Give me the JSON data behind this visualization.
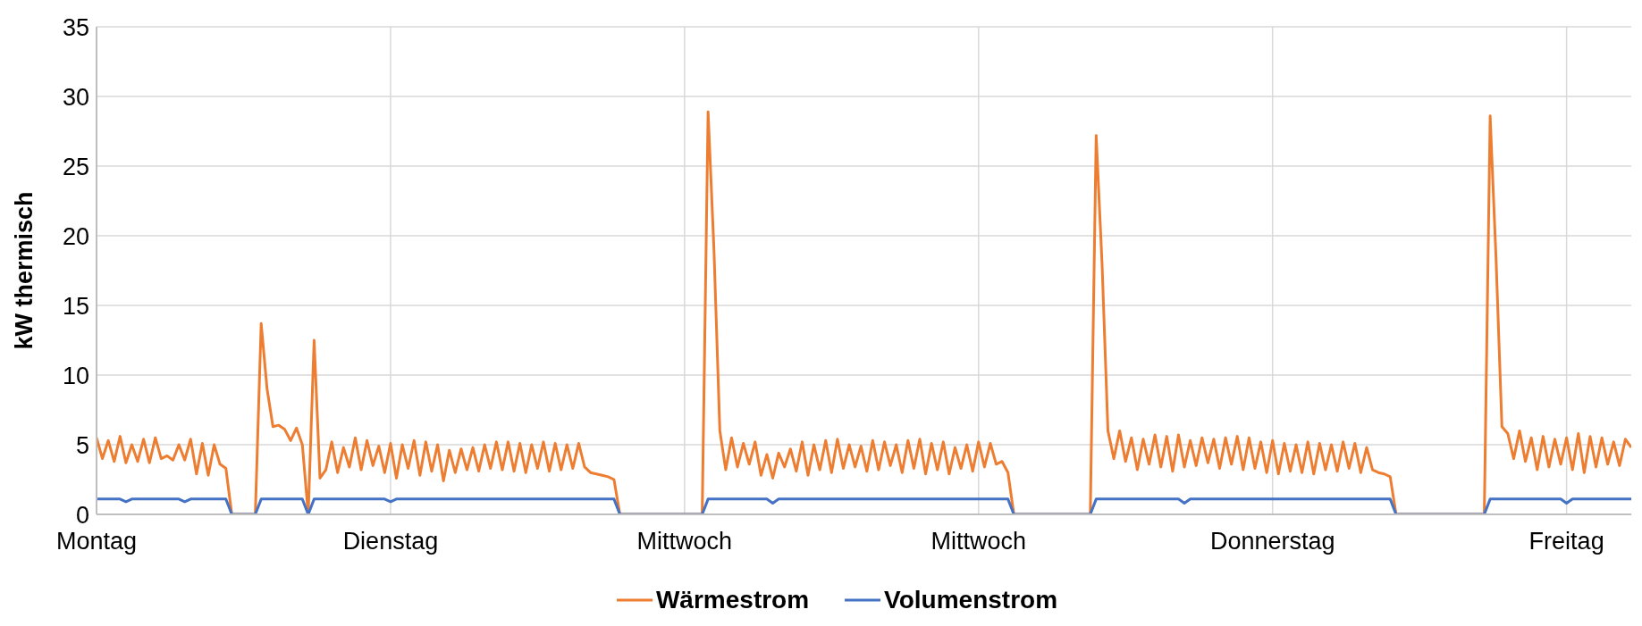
{
  "chart_data": {
    "type": "line",
    "ylabel": "kW thermisch",
    "ylim": [
      0,
      35
    ],
    "yticks": [
      0,
      5,
      10,
      15,
      20,
      25,
      30,
      35
    ],
    "grid": true,
    "legend": "bottom",
    "categories": [
      "Montag",
      null,
      null,
      null,
      null,
      null,
      null,
      null,
      null,
      null,
      null,
      null,
      null,
      null,
      null,
      null,
      null,
      null,
      null,
      null,
      null,
      null,
      null,
      null,
      null,
      null,
      null,
      null,
      null,
      null,
      null,
      null,
      null,
      null,
      null,
      null,
      null,
      null,
      null,
      null,
      null,
      null,
      null,
      null,
      null,
      null,
      null,
      null,
      null,
      null,
      "Dienstag",
      null,
      null,
      null,
      null,
      null,
      null,
      null,
      null,
      null,
      null,
      null,
      null,
      null,
      null,
      null,
      null,
      null,
      null,
      null,
      null,
      null,
      null,
      null,
      null,
      null,
      null,
      null,
      null,
      null,
      null,
      null,
      null,
      null,
      null,
      null,
      null,
      null,
      null,
      null,
      null,
      null,
      null,
      null,
      null,
      null,
      null,
      null,
      null,
      null,
      "Mittwoch",
      null,
      null,
      null,
      null,
      null,
      null,
      null,
      null,
      null,
      null,
      null,
      null,
      null,
      null,
      null,
      null,
      null,
      null,
      null,
      null,
      null,
      null,
      null,
      null,
      null,
      null,
      null,
      null,
      null,
      null,
      null,
      null,
      null,
      null,
      null,
      null,
      null,
      null,
      null,
      null,
      null,
      null,
      null,
      null,
      null,
      null,
      null,
      null,
      null,
      "Mittwoch",
      null,
      null,
      null,
      null,
      null,
      null,
      null,
      null,
      null,
      null,
      null,
      null,
      null,
      null,
      null,
      null,
      null,
      null,
      null,
      null,
      null,
      null,
      null,
      null,
      null,
      null,
      null,
      null,
      null,
      null,
      null,
      null,
      null,
      null,
      null,
      null,
      null,
      null,
      null,
      null,
      null,
      null,
      null,
      null,
      null,
      null,
      null,
      null,
      null,
      "Donnerstag",
      null,
      null,
      null,
      null,
      null,
      null,
      null,
      null,
      null,
      null,
      null,
      null,
      null,
      null,
      null,
      null,
      null,
      null,
      null,
      null,
      null,
      null,
      null,
      null,
      null,
      null,
      null,
      null,
      null,
      null,
      null,
      null,
      null,
      null,
      null,
      null,
      null,
      null,
      null,
      null,
      null,
      null,
      null,
      null,
      null,
      null,
      null,
      null,
      null,
      "Freitag",
      null,
      null,
      null,
      null,
      null,
      null,
      null,
      null,
      null,
      null,
      null
    ],
    "series": [
      {
        "name": "Wärmestrom",
        "color": "#ed7d31",
        "values": [
          5.5,
          4.0,
          5.3,
          3.8,
          5.6,
          3.7,
          5.0,
          3.8,
          5.4,
          3.7,
          5.5,
          4.0,
          4.2,
          3.9,
          5.0,
          3.9,
          5.4,
          2.9,
          5.1,
          2.8,
          5.0,
          3.6,
          3.3,
          0,
          0,
          0,
          0,
          0,
          13.7,
          9.0,
          6.3,
          6.4,
          6.1,
          5.3,
          6.2,
          5.0,
          0,
          12.5,
          2.6,
          3.2,
          5.2,
          3.0,
          4.8,
          3.4,
          5.5,
          3.2,
          5.3,
          3.5,
          4.9,
          3.0,
          5.1,
          2.6,
          5.0,
          3.3,
          5.3,
          2.8,
          5.2,
          3.1,
          5.0,
          2.4,
          4.6,
          3.0,
          4.7,
          3.2,
          4.8,
          3.1,
          5.0,
          3.3,
          5.2,
          3.2,
          5.2,
          3.1,
          5.1,
          3.0,
          5.0,
          3.3,
          5.2,
          3.1,
          5.1,
          3.2,
          5.0,
          3.3,
          5.1,
          3.4,
          3.0,
          2.9,
          2.8,
          2.7,
          2.5,
          0,
          0,
          0,
          0,
          0,
          0,
          0,
          0,
          0,
          0,
          0,
          0,
          0,
          0,
          0,
          28.9,
          19.0,
          6.0,
          3.2,
          5.5,
          3.4,
          5.1,
          3.6,
          5.2,
          2.8,
          4.3,
          2.6,
          4.4,
          3.4,
          4.7,
          3.1,
          5.2,
          2.8,
          5.0,
          3.2,
          5.3,
          3.0,
          5.4,
          3.3,
          5.0,
          3.4,
          4.9,
          3.1,
          5.3,
          3.2,
          5.2,
          3.5,
          5.0,
          3.0,
          5.3,
          3.3,
          5.4,
          2.9,
          5.1,
          3.2,
          5.2,
          2.9,
          4.8,
          3.3,
          5.0,
          3.1,
          5.2,
          3.4,
          5.1,
          3.6,
          3.8,
          3.0,
          0,
          0,
          0,
          0,
          0,
          0,
          0,
          0,
          0,
          0,
          0,
          0,
          0,
          0,
          27.2,
          18.0,
          6.0,
          4.0,
          6.0,
          3.8,
          5.5,
          3.2,
          5.4,
          3.6,
          5.7,
          3.4,
          5.6,
          3.1,
          5.7,
          3.4,
          5.3,
          3.5,
          5.5,
          3.7,
          5.4,
          3.3,
          5.5,
          3.6,
          5.6,
          3.2,
          5.5,
          3.3,
          5.2,
          3.0,
          5.3,
          2.9,
          5.1,
          3.1,
          5.0,
          3.0,
          5.2,
          2.9,
          5.1,
          3.2,
          5.0,
          3.1,
          5.2,
          3.3,
          5.1,
          3.0,
          4.8,
          3.2,
          3.0,
          2.9,
          2.7,
          0,
          0,
          0,
          0,
          0,
          0,
          0,
          0,
          0,
          0,
          0,
          0,
          0,
          0,
          0,
          0,
          28.6,
          18.4,
          6.3,
          5.8,
          4.0,
          6.0,
          3.8,
          5.5,
          3.2,
          5.6,
          3.4,
          5.4,
          3.6,
          5.5,
          3.2,
          5.8,
          3.0,
          5.6,
          3.4,
          5.5,
          3.6,
          5.2,
          3.5,
          5.4,
          4.8
        ]
      },
      {
        "name": "Volumenstrom",
        "color": "#4472c4",
        "values": [
          1.1,
          1.1,
          1.1,
          1.1,
          1.1,
          0.9,
          1.1,
          1.1,
          1.1,
          1.1,
          1.1,
          1.1,
          1.1,
          1.1,
          1.1,
          0.9,
          1.1,
          1.1,
          1.1,
          1.1,
          1.1,
          1.1,
          1.1,
          0,
          0,
          0,
          0,
          0,
          1.1,
          1.1,
          1.1,
          1.1,
          1.1,
          1.1,
          1.1,
          1.1,
          0,
          1.1,
          1.1,
          1.1,
          1.1,
          1.1,
          1.1,
          1.1,
          1.1,
          1.1,
          1.1,
          1.1,
          1.1,
          1.1,
          0.9,
          1.1,
          1.1,
          1.1,
          1.1,
          1.1,
          1.1,
          1.1,
          1.1,
          1.1,
          1.1,
          1.1,
          1.1,
          1.1,
          1.1,
          1.1,
          1.1,
          1.1,
          1.1,
          1.1,
          1.1,
          1.1,
          1.1,
          1.1,
          1.1,
          1.1,
          1.1,
          1.1,
          1.1,
          1.1,
          1.1,
          1.1,
          1.1,
          1.1,
          1.1,
          1.1,
          1.1,
          1.1,
          1.1,
          0,
          0,
          0,
          0,
          0,
          0,
          0,
          0,
          0,
          0,
          0,
          0,
          0,
          0,
          0,
          1.1,
          1.1,
          1.1,
          1.1,
          1.1,
          1.1,
          1.1,
          1.1,
          1.1,
          1.1,
          1.1,
          0.8,
          1.1,
          1.1,
          1.1,
          1.1,
          1.1,
          1.1,
          1.1,
          1.1,
          1.1,
          1.1,
          1.1,
          1.1,
          1.1,
          1.1,
          1.1,
          1.1,
          1.1,
          1.1,
          1.1,
          1.1,
          1.1,
          1.1,
          1.1,
          1.1,
          1.1,
          1.1,
          1.1,
          1.1,
          1.1,
          1.1,
          1.1,
          1.1,
          1.1,
          1.1,
          1.1,
          1.1,
          1.1,
          1.1,
          1.1,
          1.1,
          0,
          0,
          0,
          0,
          0,
          0,
          0,
          0,
          0,
          0,
          0,
          0,
          0,
          0,
          1.1,
          1.1,
          1.1,
          1.1,
          1.1,
          1.1,
          1.1,
          1.1,
          1.1,
          1.1,
          1.1,
          1.1,
          1.1,
          1.1,
          1.1,
          0.8,
          1.1,
          1.1,
          1.1,
          1.1,
          1.1,
          1.1,
          1.1,
          1.1,
          1.1,
          1.1,
          1.1,
          1.1,
          1.1,
          1.1,
          1.1,
          1.1,
          1.1,
          1.1,
          1.1,
          1.1,
          1.1,
          1.1,
          1.1,
          1.1,
          1.1,
          1.1,
          1.1,
          1.1,
          1.1,
          1.1,
          1.1,
          1.1,
          1.1,
          1.1,
          1.1,
          0,
          0,
          0,
          0,
          0,
          0,
          0,
          0,
          0,
          0,
          0,
          0,
          0,
          0,
          0,
          0,
          1.1,
          1.1,
          1.1,
          1.1,
          1.1,
          1.1,
          1.1,
          1.1,
          1.1,
          1.1,
          1.1,
          1.1,
          1.1,
          0.8,
          1.1,
          1.1,
          1.1,
          1.1,
          1.1,
          1.1,
          1.1,
          1.1,
          1.1,
          1.1,
          1.1
        ]
      }
    ]
  }
}
